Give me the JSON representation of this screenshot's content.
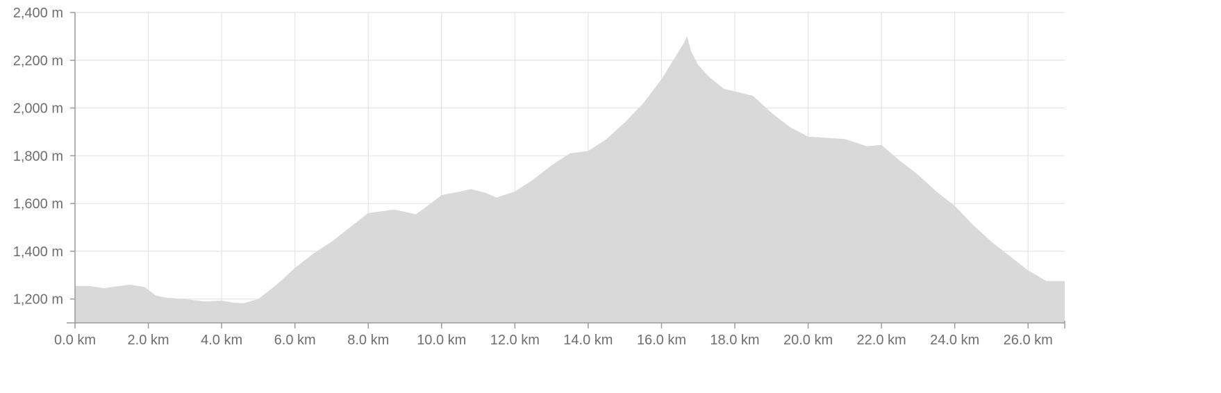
{
  "chart_data": {
    "type": "area",
    "title": "",
    "xlabel": "",
    "ylabel": "",
    "x_unit": "km",
    "y_unit": "m",
    "xlim": [
      0,
      27
    ],
    "ylim": [
      1100,
      2400
    ],
    "x_ticks": [
      "0.0 km",
      "2.0 km",
      "4.0 km",
      "6.0 km",
      "8.0 km",
      "10.0 km",
      "12.0 km",
      "14.0 km",
      "16.0 km",
      "18.0 km",
      "20.0 km",
      "22.0 km",
      "24.0 km",
      "26.0 km"
    ],
    "y_ticks": [
      "1,200 m",
      "1,400 m",
      "1,600 m",
      "1,800 m",
      "2,000 m",
      "2,200 m",
      "2,400 m"
    ],
    "x_tick_values": [
      0,
      2,
      4,
      6,
      8,
      10,
      12,
      14,
      16,
      18,
      20,
      22,
      24,
      26
    ],
    "y_tick_values": [
      1200,
      1400,
      1600,
      1800,
      2000,
      2200,
      2400
    ],
    "grid": true,
    "fill_color": "#d9d9d9",
    "grid_color": "#e4e4e4",
    "axis_color": "#9a9a9a",
    "series": [
      {
        "x": [
          0,
          0.4,
          0.8,
          1.0,
          1.5,
          1.9,
          2.2,
          2.5,
          3.0,
          3.5,
          4.0,
          4.3,
          4.6,
          5.0,
          5.5,
          6.0,
          6.5,
          7.0,
          7.5,
          8.0,
          8.5,
          8.7,
          9.0,
          9.3,
          9.7,
          10.0,
          10.5,
          10.8,
          11.2,
          11.5,
          12.0,
          12.5,
          13.0,
          13.5,
          14.0,
          14.5,
          15.0,
          15.5,
          16.0,
          16.4,
          16.6,
          16.7,
          16.8,
          17.0,
          17.3,
          17.7,
          18.0,
          18.5,
          19.0,
          19.5,
          20.0,
          20.5,
          21.0,
          21.3,
          21.6,
          22.0,
          22.5,
          23.0,
          23.5,
          24.0,
          24.5,
          25.0,
          25.5,
          26.0,
          26.5,
          26.9
        ],
        "y": [
          1255,
          1255,
          1245,
          1250,
          1260,
          1250,
          1215,
          1205,
          1200,
          1190,
          1193,
          1185,
          1182,
          1200,
          1260,
          1330,
          1390,
          1440,
          1500,
          1560,
          1570,
          1575,
          1565,
          1555,
          1600,
          1635,
          1650,
          1660,
          1645,
          1625,
          1650,
          1700,
          1760,
          1810,
          1820,
          1870,
          1940,
          2020,
          2120,
          2220,
          2270,
          2300,
          2240,
          2180,
          2130,
          2080,
          2070,
          2050,
          1980,
          1920,
          1880,
          1875,
          1870,
          1855,
          1840,
          1845,
          1780,
          1720,
          1650,
          1590,
          1510,
          1440,
          1380,
          1320,
          1275,
          1275
        ]
      }
    ]
  }
}
